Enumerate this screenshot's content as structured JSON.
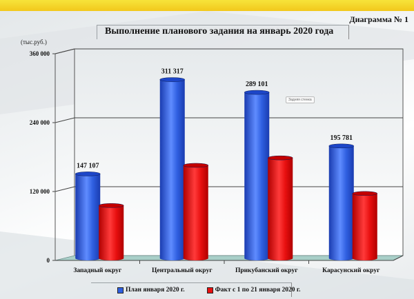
{
  "header": {
    "diagram_number": "Диаграмма № 1",
    "title": "Выполнение планового задания на январь 2020 года",
    "units": "(тыс.руб.)",
    "note": "Задняя стенка"
  },
  "colors": {
    "accent_bar": "#f5d52a",
    "plan": "#2f5fe0",
    "fact": "#e81010",
    "floor": "#a8cfc8"
  },
  "legend": {
    "items": [
      {
        "label": "План января 2020 г.",
        "color": "#2f5fe0"
      },
      {
        "label": "Факт с 1 по 21 января 2020 г.",
        "color": "#e81010"
      }
    ]
  },
  "chart_data": {
    "type": "bar",
    "title": "Выполнение планового задания на январь 2020 года",
    "xlabel": "",
    "ylabel": "(тыс.руб.)",
    "ylim": [
      0,
      360000
    ],
    "yticks": [
      0,
      120000,
      240000,
      360000
    ],
    "ytick_labels": [
      "0",
      "120 000",
      "240 000",
      "360 000"
    ],
    "grid": true,
    "legend_position": "bottom",
    "categories": [
      "Западный округ",
      "Центральный округ",
      "Прикубанский округ",
      "Карасунский округ"
    ],
    "series": [
      {
        "name": "План января 2020 г.",
        "values": [
          147107,
          311317,
          289101,
          195781
        ],
        "labels": [
          "147 107",
          "311 317",
          "289 101",
          "195 781"
        ]
      },
      {
        "name": "Факт с 1 по 21 января 2020 г.",
        "values": [
          92000,
          162000,
          175000,
          113000
        ]
      }
    ]
  }
}
